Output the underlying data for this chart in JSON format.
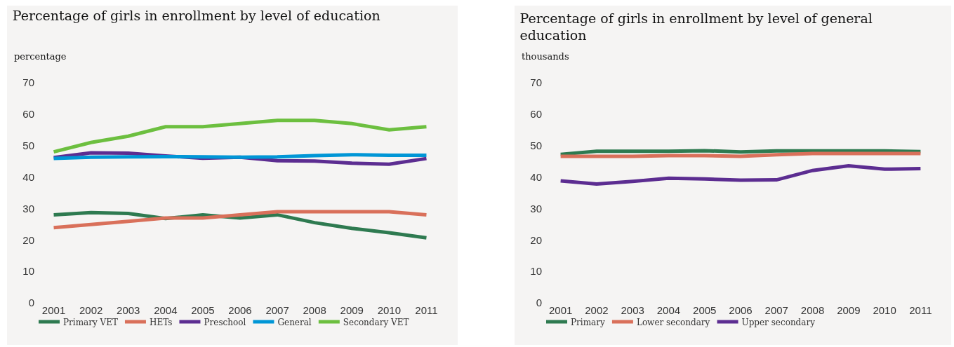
{
  "chart_data": [
    {
      "type": "line",
      "title": "Percentage of girls in enrollment by level of education",
      "ylabel": "percentage",
      "categories": [
        "2001",
        "2002",
        "2003",
        "2004",
        "2005",
        "2006",
        "2007",
        "2008",
        "2009",
        "2010",
        "2011"
      ],
      "series": [
        {
          "name": "Primary VET",
          "color": "#2e7a50",
          "values": [
            28,
            28.7,
            28.4,
            26.8,
            28,
            27,
            28,
            25.5,
            23.7,
            22.3,
            20.7
          ]
        },
        {
          "name": "HETs",
          "color": "#d9705a",
          "values": [
            23.9,
            24.9,
            25.9,
            27,
            27,
            28,
            29,
            29,
            29,
            29,
            28
          ]
        },
        {
          "name": "Preschool",
          "color": "#5c2d91",
          "values": [
            46.2,
            47.7,
            47.6,
            46.7,
            46,
            46.3,
            45.2,
            45.1,
            44.4,
            44.1,
            45.9
          ]
        },
        {
          "name": "General",
          "color": "#0096d6",
          "values": [
            45.9,
            46.3,
            46.4,
            46.5,
            46.4,
            46.3,
            46.4,
            46.8,
            47.1,
            46.9,
            46.9
          ]
        },
        {
          "name": "Secondary VET",
          "color": "#6cbf3f",
          "values": [
            48,
            51,
            53,
            56,
            56,
            57,
            58,
            58,
            57,
            55,
            56
          ]
        }
      ],
      "ylim": [
        0,
        70
      ],
      "yticks": [
        0,
        10,
        20,
        30,
        40,
        50,
        60,
        70
      ],
      "grid": false,
      "legend": "bottom",
      "marker": "none",
      "line_style": "solid"
    },
    {
      "type": "line",
      "title": "Percentage of girls in enrollment by level of general education",
      "ylabel": "thousands",
      "categories": [
        "2001",
        "2002",
        "2003",
        "2004",
        "2005",
        "2006",
        "2007",
        "2008",
        "2009",
        "2010",
        "2011"
      ],
      "series": [
        {
          "name": "Primary",
          "color": "#2e7a50",
          "values": [
            47.2,
            48.2,
            48.2,
            48.2,
            48.4,
            48,
            48.3,
            48.3,
            48.3,
            48.3,
            48.1
          ]
        },
        {
          "name": "Lower secondary",
          "color": "#d9705a",
          "values": [
            46.6,
            46.6,
            46.6,
            46.8,
            46.8,
            46.6,
            47.1,
            47.5,
            47.5,
            47.5,
            47.5
          ]
        },
        {
          "name": "Upper secondary",
          "color": "#5c2d91",
          "values": [
            38.8,
            37.8,
            38.6,
            39.6,
            39.4,
            39,
            39.1,
            42.1,
            43.6,
            42.5,
            42.7
          ]
        }
      ],
      "ylim": [
        0,
        70
      ],
      "yticks": [
        0,
        10,
        20,
        30,
        40,
        50,
        60,
        70
      ],
      "grid": false,
      "legend": "bottom",
      "marker": "none",
      "line_style": "solid"
    }
  ]
}
